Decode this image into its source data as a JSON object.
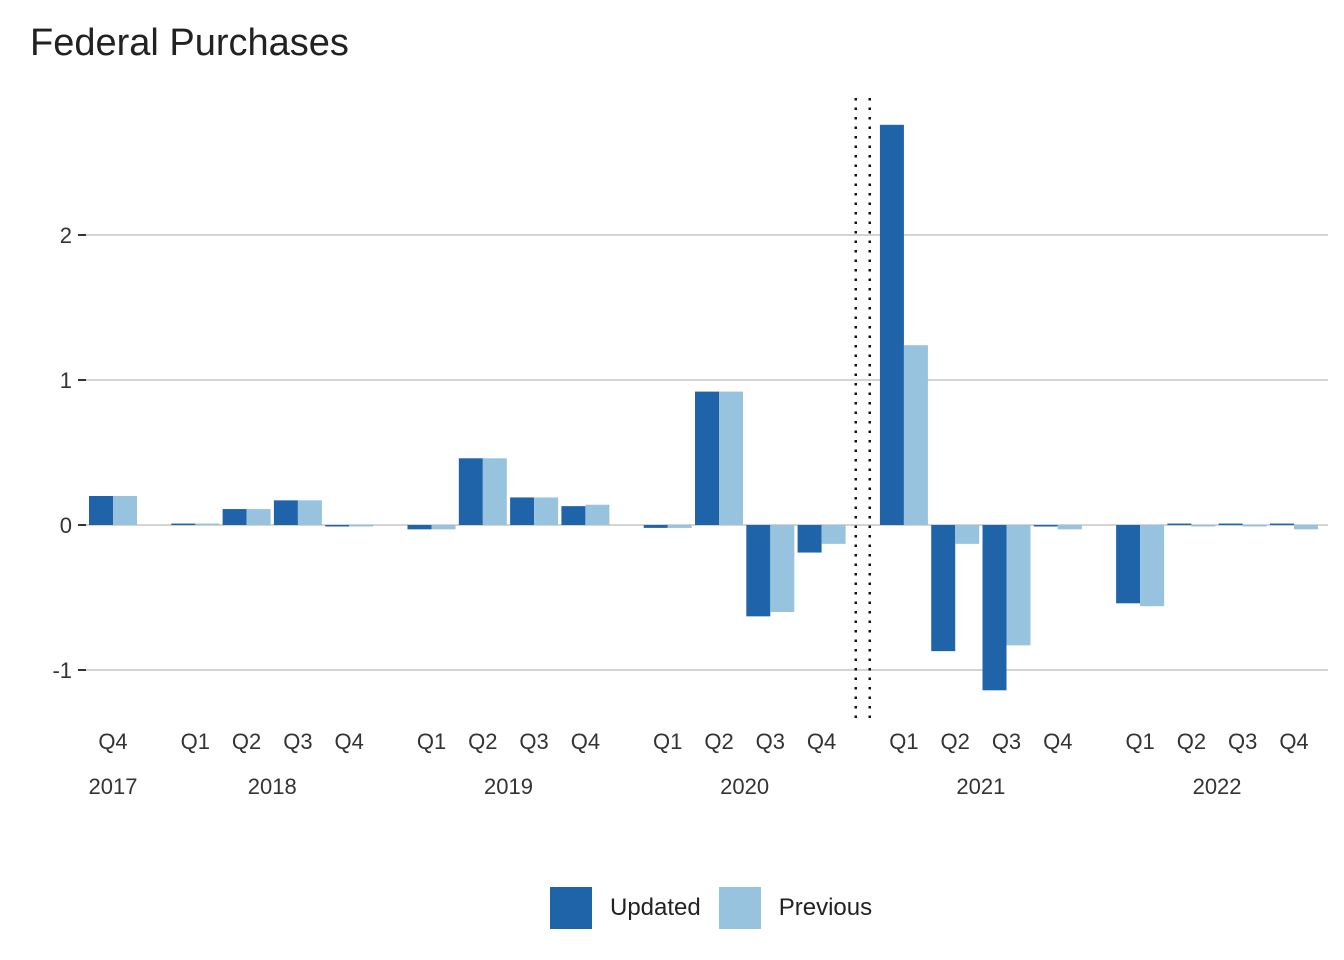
{
  "title": "Federal Purchases",
  "colors": {
    "updated": "#1f63a8",
    "previous": "#97c3de",
    "grid": "#d4d4d4",
    "text": "#333333",
    "divider": "#111111"
  },
  "legend": {
    "updated_label": "Updated",
    "previous_label": "Previous"
  },
  "chart_data": {
    "type": "bar",
    "title": "Federal Purchases",
    "xlabel": "",
    "ylabel": "",
    "ylim": [
      -1.25,
      2.9
    ],
    "yticks": [
      -1,
      0,
      1,
      2
    ],
    "grid": true,
    "legend_position": "bottom",
    "divider_between": [
      "2020 Q4",
      "2021 Q1"
    ],
    "categories": [
      {
        "quarter": "Q4",
        "year": "2017"
      },
      {
        "quarter": "Q1",
        "year": "2018"
      },
      {
        "quarter": "Q2",
        "year": "2018"
      },
      {
        "quarter": "Q3",
        "year": "2018"
      },
      {
        "quarter": "Q4",
        "year": "2018"
      },
      {
        "quarter": "Q1",
        "year": "2019"
      },
      {
        "quarter": "Q2",
        "year": "2019"
      },
      {
        "quarter": "Q3",
        "year": "2019"
      },
      {
        "quarter": "Q4",
        "year": "2019"
      },
      {
        "quarter": "Q1",
        "year": "2020"
      },
      {
        "quarter": "Q2",
        "year": "2020"
      },
      {
        "quarter": "Q3",
        "year": "2020"
      },
      {
        "quarter": "Q4",
        "year": "2020"
      },
      {
        "quarter": "Q1",
        "year": "2021"
      },
      {
        "quarter": "Q2",
        "year": "2021"
      },
      {
        "quarter": "Q3",
        "year": "2021"
      },
      {
        "quarter": "Q4",
        "year": "2021"
      },
      {
        "quarter": "Q1",
        "year": "2022"
      },
      {
        "quarter": "Q2",
        "year": "2022"
      },
      {
        "quarter": "Q3",
        "year": "2022"
      },
      {
        "quarter": "Q4",
        "year": "2022"
      }
    ],
    "year_labels": [
      "2017",
      "2018",
      "2019",
      "2020",
      "2021",
      "2022"
    ],
    "series": [
      {
        "name": "Updated",
        "values": [
          0.2,
          0.01,
          0.11,
          0.17,
          0.0,
          -0.03,
          0.46,
          0.19,
          0.13,
          -0.02,
          0.92,
          -0.63,
          -0.19,
          2.76,
          -0.87,
          -1.14,
          -0.01,
          -0.54,
          0.01,
          0.01,
          0.01
        ]
      },
      {
        "name": "Previous",
        "values": [
          0.2,
          0.01,
          0.11,
          0.17,
          0.0,
          -0.03,
          0.46,
          0.19,
          0.14,
          -0.02,
          0.92,
          -0.6,
          -0.13,
          1.24,
          -0.13,
          -0.83,
          -0.03,
          -0.56,
          -0.01,
          0.0,
          -0.03
        ]
      }
    ]
  }
}
